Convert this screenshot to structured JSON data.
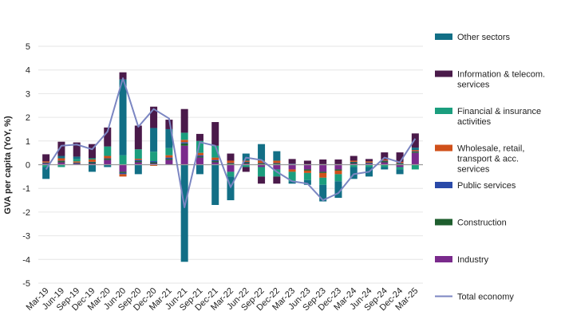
{
  "chart_data": {
    "type": "bar",
    "stacked": true,
    "title": "",
    "xlabel": "",
    "ylabel": "GVA per capita (YoY, %)",
    "ylim": [
      -5,
      5
    ],
    "yticks": [
      -5,
      -4,
      -3,
      -2,
      -1,
      0,
      1,
      2,
      3,
      4,
      5
    ],
    "grid": true,
    "legend_position": "right",
    "categories": [
      "Mar-19",
      "Jun-19",
      "Sep-19",
      "Dec-19",
      "Mar-20",
      "Jun-20",
      "Sep-20",
      "Dec-20",
      "Mar-21",
      "Jun-21",
      "Sep-21",
      "Dec-21",
      "Mar-22",
      "Jun-22",
      "Sep-22",
      "Dec-22",
      "Mar-23",
      "Jun-23",
      "Sep-23",
      "Dec-23",
      "Mar-24",
      "Jun-24",
      "Sep-24",
      "Dec-24",
      "Mar-25"
    ],
    "tick_labels": [
      "Mar-19",
      "Jun-19",
      "Sep-19",
      "Dec-19",
      "Mar-20",
      "Jun-20",
      "Sep-20",
      "Dec-20",
      "Mar-21",
      "Jun-21",
      "Sep-21",
      "Dec-21",
      "Mar-22",
      "Jun-22",
      "Sep-22",
      "Dec-22",
      "Mar-23",
      "Jun-23",
      "Sep-23",
      "Dec-23",
      "Mar-24",
      "Jun-24",
      "Sep-24",
      "Dec-24",
      "Mar-25"
    ],
    "series": [
      {
        "name": "Industry",
        "color": "#7a2a8c",
        "values": [
          0.05,
          0.1,
          0.05,
          0.05,
          0.2,
          -0.3,
          0.1,
          0.05,
          0.2,
          0.8,
          0.3,
          0.1,
          -0.3,
          0.05,
          -0.1,
          -0.2,
          -0.2,
          -0.2,
          -0.3,
          -0.2,
          0.05,
          0.05,
          0.1,
          -0.1,
          0.5
        ]
      },
      {
        "name": "Construction",
        "color": "#1e5e2e",
        "values": [
          0.02,
          0.05,
          0.02,
          0.05,
          0.05,
          -0.05,
          0.05,
          0.05,
          0.05,
          0.1,
          0.05,
          0.05,
          0.05,
          0.05,
          0.05,
          0.05,
          0.02,
          -0.05,
          -0.05,
          -0.05,
          0.05,
          0.02,
          0.05,
          0.05,
          0.05
        ]
      },
      {
        "name": "Public services",
        "color": "#2a4aa8",
        "values": [
          0.02,
          0.02,
          0.02,
          0.02,
          0.02,
          -0.05,
          0.05,
          0.05,
          0.05,
          0.05,
          0.05,
          0.05,
          0.02,
          0.02,
          0.02,
          0.02,
          0.02,
          0.02,
          0.02,
          0.02,
          0.02,
          0.02,
          0.02,
          0.02,
          0.02
        ]
      },
      {
        "name": "Wholesale, retail, transport & acc. services",
        "color": "#d0501a",
        "values": [
          0.05,
          0.1,
          0.05,
          0.1,
          0.1,
          -0.1,
          0.05,
          -0.05,
          0.1,
          0.1,
          0.1,
          0.1,
          0.1,
          0.05,
          0.1,
          0.1,
          -0.1,
          -0.1,
          -0.2,
          -0.15,
          0.05,
          0.05,
          0.05,
          0.05,
          0.05
        ]
      },
      {
        "name": "Financial & insurance activities",
        "color": "#1b9e7e",
        "values": [
          -0.1,
          -0.1,
          0.1,
          0.05,
          0.4,
          0.4,
          0.4,
          0.4,
          0.3,
          0.3,
          0.5,
          0.5,
          -0.2,
          -0.1,
          -0.4,
          -0.3,
          -0.4,
          -0.3,
          -0.3,
          -0.3,
          -0.1,
          -0.1,
          -0.1,
          -0.1,
          -0.2
        ]
      },
      {
        "name": "Other sectors",
        "color": "#126f86",
        "values": [
          -0.5,
          0.1,
          0.1,
          -0.3,
          -0.1,
          3.2,
          -0.4,
          1.0,
          0.8,
          -4.1,
          -0.4,
          -1.7,
          -1.0,
          0.3,
          0.7,
          0.4,
          -0.1,
          -0.2,
          -0.7,
          -0.7,
          -0.5,
          -0.4,
          -0.1,
          -0.2,
          0.1
        ]
      },
      {
        "name": "Information & telecom. services",
        "color": "#4a1a4a",
        "values": [
          0.3,
          0.6,
          0.6,
          0.6,
          0.8,
          0.3,
          1.0,
          0.9,
          0.4,
          1.0,
          0.3,
          1.0,
          0.3,
          -0.2,
          -0.3,
          -0.3,
          0.2,
          0.15,
          0.2,
          0.2,
          0.2,
          0.1,
          0.3,
          0.4,
          0.6
        ]
      }
    ],
    "line": {
      "name": "Total economy",
      "color": "#7b86c2",
      "values": [
        -0.2,
        0.8,
        0.85,
        0.65,
        1.4,
        3.65,
        1.6,
        2.35,
        1.95,
        -1.8,
        0.95,
        0.8,
        -0.95,
        0.3,
        0.2,
        -0.3,
        -0.7,
        -0.8,
        -1.5,
        -1.2,
        -0.4,
        -0.3,
        0.3,
        0.1,
        1.1
      ]
    },
    "legend": [
      {
        "label": "Other sectors",
        "color": "#126f86",
        "kind": "box"
      },
      {
        "label": "Information & telecom. services",
        "color": "#4a1a4a",
        "kind": "box"
      },
      {
        "label": "Financial & insurance activities",
        "color": "#1b9e7e",
        "kind": "box"
      },
      {
        "label": "Wholesale, retail, transport & acc. services",
        "color": "#d0501a",
        "kind": "box"
      },
      {
        "label": "Public services",
        "color": "#2a4aa8",
        "kind": "box"
      },
      {
        "label": "Construction",
        "color": "#1e5e2e",
        "kind": "box"
      },
      {
        "label": "Industry",
        "color": "#7a2a8c",
        "kind": "box"
      },
      {
        "label": "Total economy",
        "color": "#7b86c2",
        "kind": "line"
      }
    ]
  }
}
